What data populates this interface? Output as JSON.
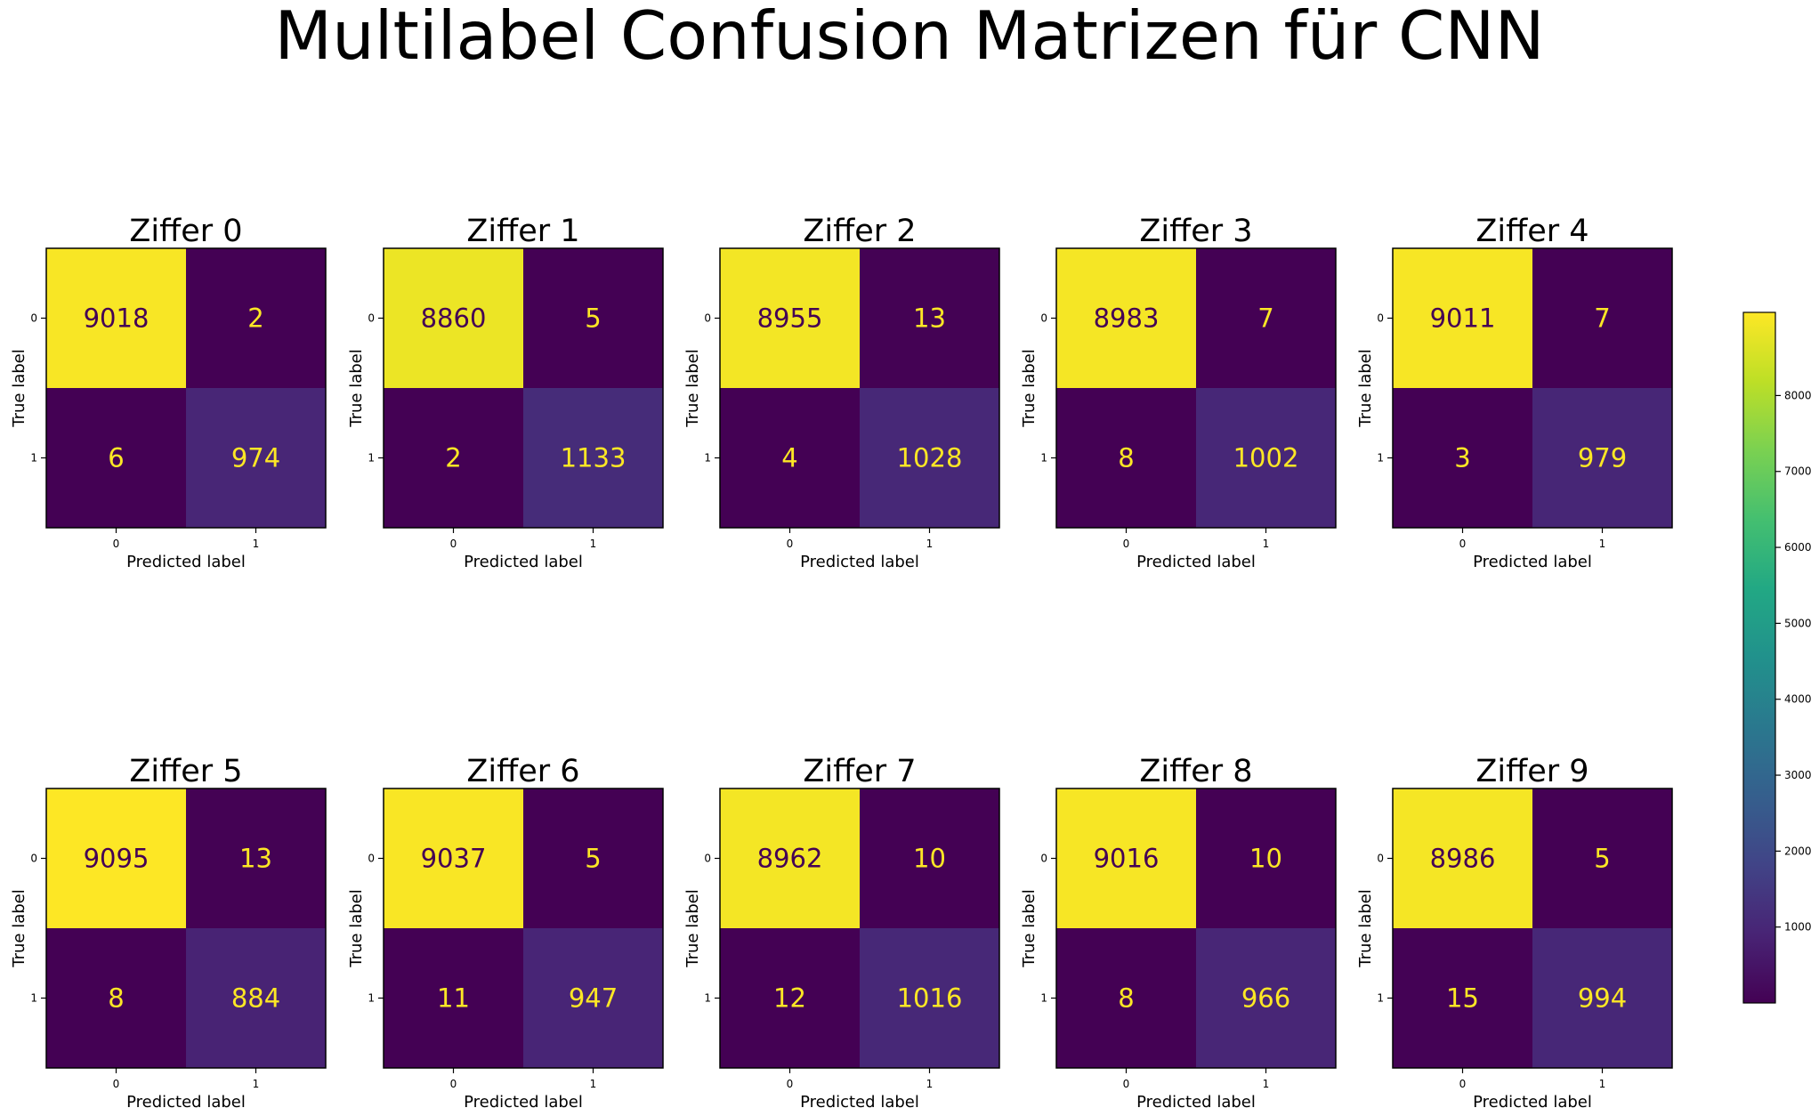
{
  "figure": {
    "title": "Multilabel Confusion Matrizen für CNN"
  },
  "chart_data": {
    "type": "heatmap",
    "colormap": "viridis",
    "xlabel": "Predicted label",
    "ylabel": "True label",
    "tick_labels": [
      "0",
      "1"
    ],
    "colorbar": {
      "range": [
        0,
        9095
      ],
      "ticks": [
        1000,
        2000,
        3000,
        4000,
        5000,
        6000,
        7000,
        8000
      ]
    },
    "matrices": [
      {
        "title": "Ziffer 0",
        "values": [
          [
            9018,
            2
          ],
          [
            6,
            974
          ]
        ]
      },
      {
        "title": "Ziffer 1",
        "values": [
          [
            8860,
            5
          ],
          [
            2,
            1133
          ]
        ]
      },
      {
        "title": "Ziffer 2",
        "values": [
          [
            8955,
            13
          ],
          [
            4,
            1028
          ]
        ]
      },
      {
        "title": "Ziffer 3",
        "values": [
          [
            8983,
            7
          ],
          [
            8,
            1002
          ]
        ]
      },
      {
        "title": "Ziffer 4",
        "values": [
          [
            9011,
            7
          ],
          [
            3,
            979
          ]
        ]
      },
      {
        "title": "Ziffer 5",
        "values": [
          [
            9095,
            13
          ],
          [
            8,
            884
          ]
        ]
      },
      {
        "title": "Ziffer 6",
        "values": [
          [
            9037,
            5
          ],
          [
            11,
            947
          ]
        ]
      },
      {
        "title": "Ziffer 7",
        "values": [
          [
            8962,
            10
          ],
          [
            12,
            1016
          ]
        ]
      },
      {
        "title": "Ziffer 8",
        "values": [
          [
            9016,
            10
          ],
          [
            8,
            966
          ]
        ]
      },
      {
        "title": "Ziffer 9",
        "values": [
          [
            8986,
            5
          ],
          [
            15,
            994
          ]
        ]
      }
    ]
  }
}
